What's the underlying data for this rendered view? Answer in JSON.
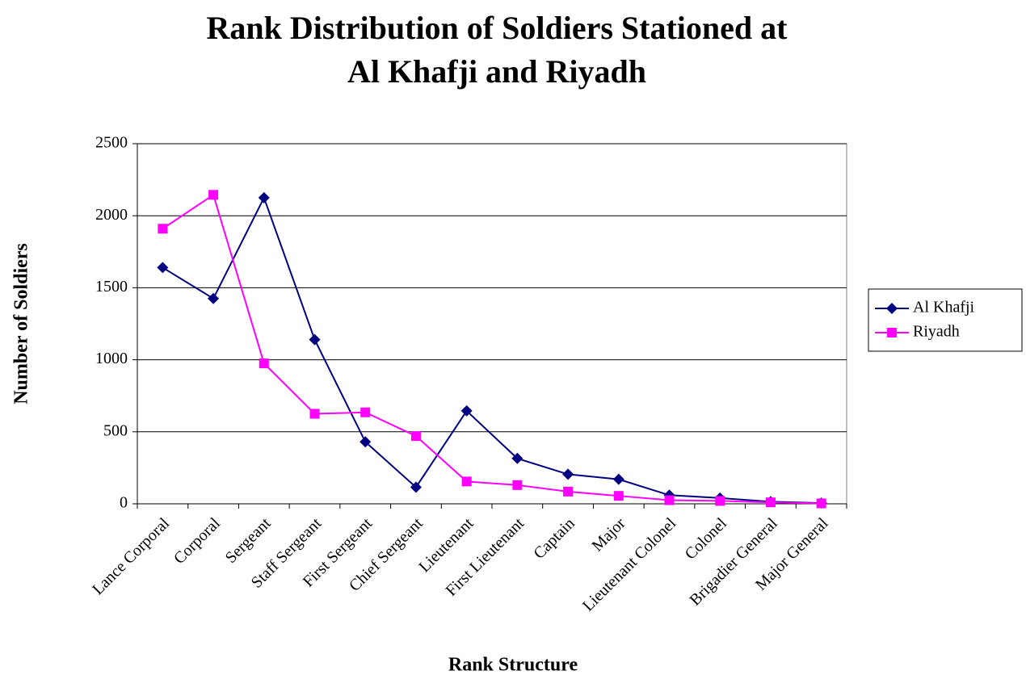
{
  "chart_data": {
    "type": "line",
    "title": "Rank Distribution of Soldiers Stationed at Al Khafji and Riyadh",
    "x_label": "Rank Structure",
    "y_label": "Number of Soldiers",
    "categories": [
      "Lance Corporal",
      "Corporal",
      "Sergeant",
      "Staff Sergeant",
      "First Sergeant",
      "Chief Sergeant",
      "Lieutenant",
      "First Lieutenant",
      "Captain",
      "Major",
      "Lieutenant Colonel",
      "Colonel",
      "Brigadier General",
      "Major General"
    ],
    "series": [
      {
        "name": "Al Khafji",
        "color": "#000080",
        "marker": "diamond",
        "values": [
          1640,
          1425,
          2125,
          1140,
          430,
          115,
          645,
          315,
          205,
          170,
          60,
          40,
          15,
          5
        ]
      },
      {
        "name": "Riyadh",
        "color": "#ff00ff",
        "marker": "square",
        "values": [
          1910,
          2145,
          975,
          625,
          635,
          470,
          155,
          130,
          85,
          55,
          25,
          20,
          10,
          3
        ]
      }
    ],
    "ylim": [
      0,
      2500
    ],
    "yticks": [
      0,
      500,
      1000,
      1500,
      2000,
      2500
    ],
    "grid": true,
    "legend": "right"
  }
}
